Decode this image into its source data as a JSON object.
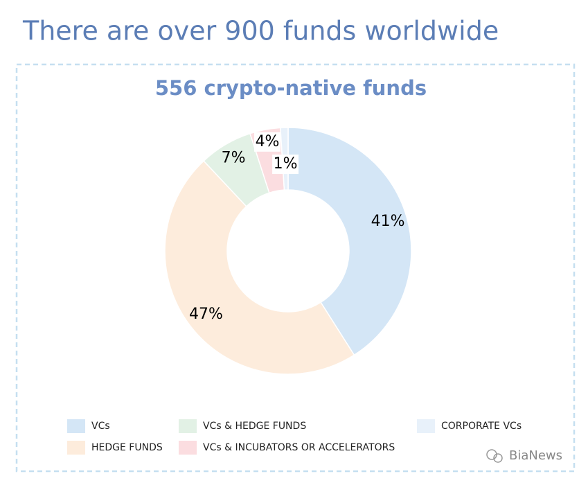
{
  "header": {
    "title": "There are over 900 funds worldwide"
  },
  "chart_data": {
    "type": "donut",
    "title": "556 crypto-native funds",
    "categories": [
      "VCs",
      "HEDGE FUNDS",
      "VCs & HEDGE FUNDS",
      "VCs & INCUBATORS OR ACCELERATORS",
      "CORPORATE VCs"
    ],
    "values": [
      41,
      47,
      7,
      4,
      1
    ],
    "value_labels": [
      "41%",
      "47%",
      "7%",
      "4%",
      "1%"
    ],
    "colors": [
      "#d4e6f6",
      "#fdecdc",
      "#e2f1e5",
      "#fbdde0",
      "#e8f1fa"
    ]
  },
  "watermark": "BiaNews"
}
